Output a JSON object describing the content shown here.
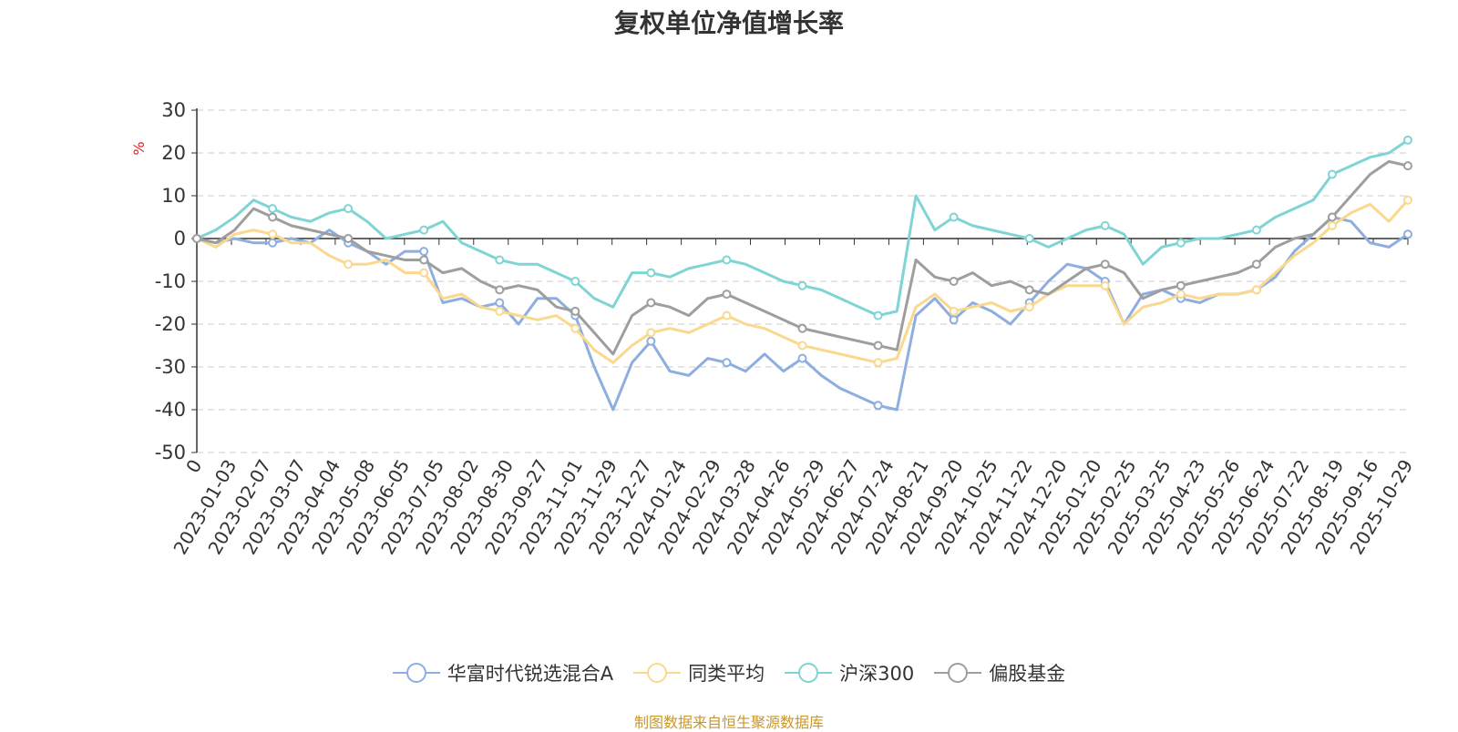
{
  "chart_data": {
    "type": "line",
    "title": "复权单位净值增长率",
    "ylabel": "%",
    "ylim": [
      -50,
      30
    ],
    "yticks": [
      30,
      20,
      10,
      0,
      -10,
      -20,
      -30,
      -40,
      -50
    ],
    "x_start_label": "0",
    "x_tick_labels": [
      "2023-01-03",
      "2023-02-07",
      "2023-03-07",
      "2023-04-04",
      "2023-05-08",
      "2023-06-05",
      "2023-07-05",
      "2023-08-02",
      "2023-08-30",
      "2023-09-27",
      "2023-11-01",
      "2023-11-29",
      "2023-12-27",
      "2024-01-24",
      "2024-02-29",
      "2024-03-28",
      "2024-04-26",
      "2024-05-29",
      "2024-06-27",
      "2024-07-24",
      "2024-08-21",
      "2024-09-20",
      "2024-10-25",
      "2024-11-22",
      "2024-12-20",
      "2025-01-20",
      "2025-02-25",
      "2025-03-25",
      "2025-04-23",
      "2025-05-26",
      "2025-06-24",
      "2025-07-22",
      "2025-08-19",
      "2025-09-16",
      "2025-10-29"
    ],
    "grid": true,
    "legend_position": "bottom",
    "series": [
      {
        "name": "华富时代锐选混合A",
        "color": "#8eaee0",
        "values": [
          0,
          -1,
          0,
          -1,
          -1,
          0,
          -1,
          2,
          -1,
          -3,
          -6,
          -3,
          -3,
          -15,
          -14,
          -16,
          -15,
          -20,
          -14,
          -14,
          -18,
          -30,
          -40,
          -29,
          -24,
          -31,
          -32,
          -28,
          -29,
          -31,
          -27,
          -31,
          -28,
          -32,
          -35,
          -37,
          -39,
          -40,
          -18,
          -14,
          -19,
          -15,
          -17,
          -20,
          -15,
          -10,
          -6,
          -7,
          -10,
          -20,
          -13,
          -12,
          -14,
          -15,
          -13,
          -13,
          -12,
          -9,
          -3,
          1,
          5,
          4,
          -1,
          -2,
          1
        ]
      },
      {
        "name": "同类平均",
        "color": "#fad88d",
        "values": [
          0,
          -2,
          1,
          2,
          1,
          -1,
          -1,
          -4,
          -6,
          -6,
          -5,
          -8,
          -8,
          -14,
          -13,
          -16,
          -17,
          -18,
          -19,
          -18,
          -21,
          -26,
          -29,
          -25,
          -22,
          -21,
          -22,
          -20,
          -18,
          -20,
          -21,
          -23,
          -25,
          -26,
          -27,
          -28,
          -29,
          -28,
          -16,
          -13,
          -17,
          -16,
          -15,
          -17,
          -16,
          -13,
          -11,
          -11,
          -11,
          -20,
          -16,
          -15,
          -13,
          -14,
          -13,
          -13,
          -12,
          -8,
          -4,
          -1,
          3,
          6,
          8,
          4,
          9
        ]
      },
      {
        "name": "沪深300",
        "color": "#7fd4d4",
        "values": [
          0,
          2,
          5,
          9,
          7,
          5,
          4,
          6,
          7,
          4,
          0,
          1,
          2,
          4,
          -1,
          -3,
          -5,
          -6,
          -6,
          -8,
          -10,
          -14,
          -16,
          -8,
          -8,
          -9,
          -7,
          -6,
          -5,
          -6,
          -8,
          -10,
          -11,
          -12,
          -14,
          -16,
          -18,
          -17,
          10,
          2,
          5,
          3,
          2,
          1,
          0,
          -2,
          0,
          2,
          3,
          1,
          -6,
          -2,
          -1,
          0,
          0,
          1,
          2,
          5,
          7,
          9,
          15,
          17,
          19,
          20,
          23
        ]
      },
      {
        "name": "偏股基金",
        "color": "#9e9e9e",
        "values": [
          0,
          -1,
          2,
          7,
          5,
          3,
          2,
          1,
          0,
          -3,
          -4,
          -5,
          -5,
          -8,
          -7,
          -10,
          -12,
          -11,
          -12,
          -16,
          -17,
          -22,
          -27,
          -18,
          -15,
          -16,
          -18,
          -14,
          -13,
          -15,
          -17,
          -19,
          -21,
          -22,
          -23,
          -24,
          -25,
          -26,
          -5,
          -9,
          -10,
          -8,
          -11,
          -10,
          -12,
          -13,
          -10,
          -7,
          -6,
          -8,
          -14,
          -12,
          -11,
          -10,
          -9,
          -8,
          -6,
          -2,
          0,
          1,
          5,
          10,
          15,
          18,
          17
        ]
      }
    ]
  },
  "footer": {
    "source": "制图数据来自恒生聚源数据库"
  }
}
